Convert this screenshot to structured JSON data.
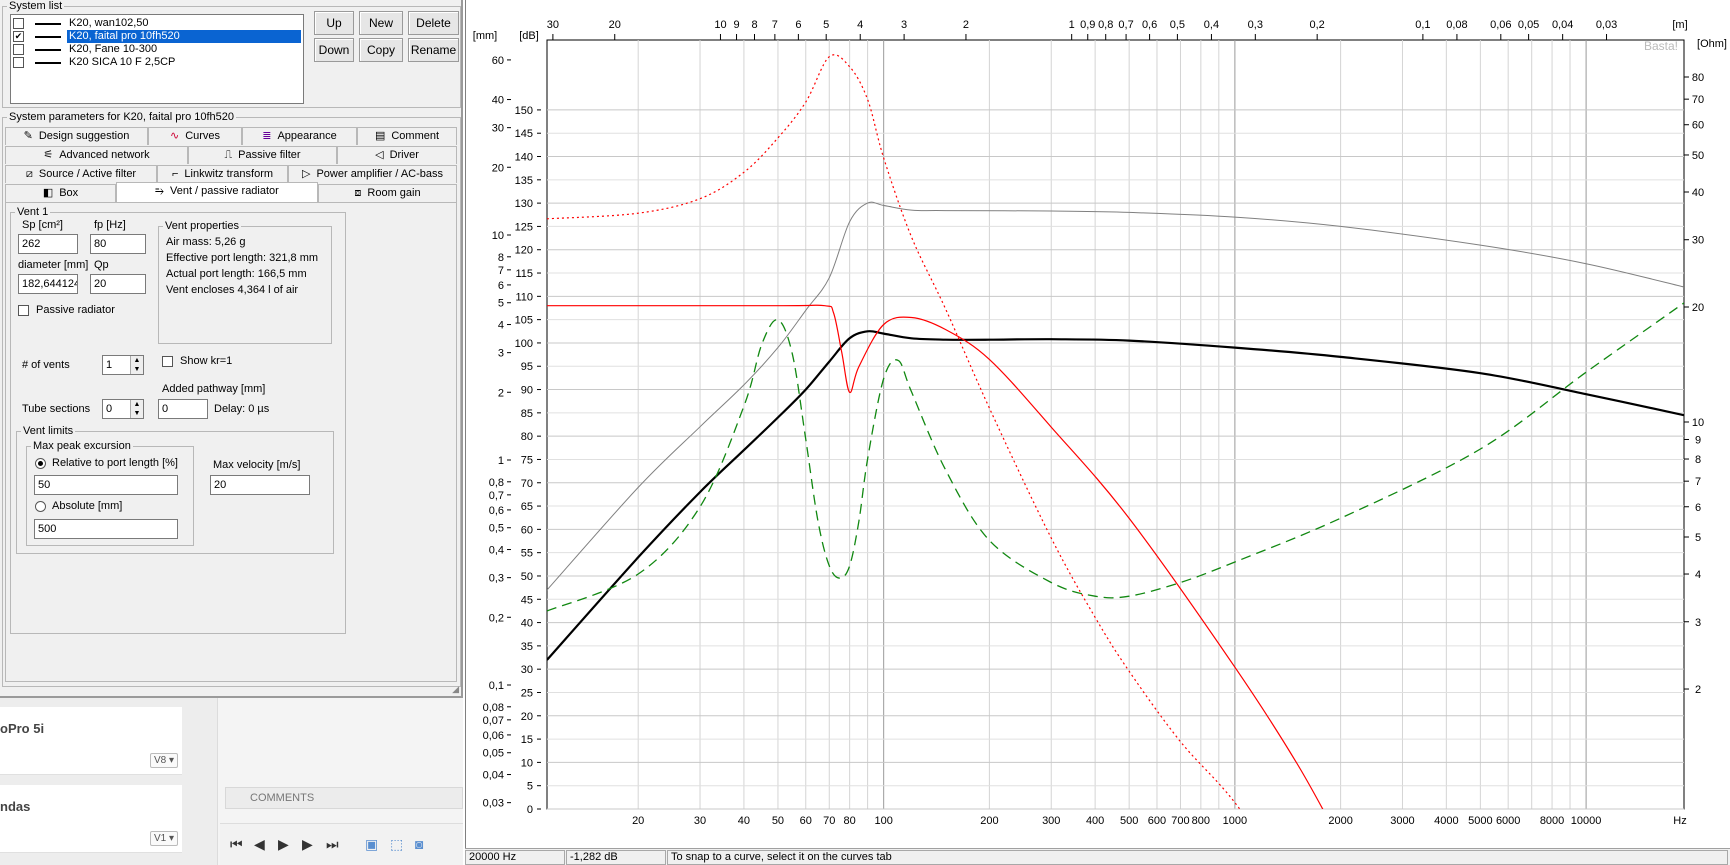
{
  "dialog": {
    "system_list_label": "System list",
    "systems": [
      {
        "name": "K20, wan102,50",
        "checked": false,
        "selected": false
      },
      {
        "name": "K20, faital pro 10fh520",
        "checked": true,
        "selected": true
      },
      {
        "name": "K20, Fane 10-300",
        "checked": false,
        "selected": false
      },
      {
        "name": "K20 SICA 10 F 2,5CP",
        "checked": false,
        "selected": false
      }
    ],
    "buttons": {
      "up": "Up",
      "new": "New",
      "delete": "Delete",
      "down": "Down",
      "copy": "Copy",
      "rename": "Rename"
    },
    "params_label": "System parameters for K20, faital pro 10fh520",
    "tabs": {
      "design_suggestion": "Design suggestion",
      "curves": "Curves",
      "appearance": "Appearance",
      "comment": "Comment",
      "advanced_network": "Advanced network",
      "passive_filter": "Passive filter",
      "driver": "Driver",
      "source_active_filter": "Source / Active filter",
      "linkwitz_transform": "Linkwitz transform",
      "power_amplifier": "Power amplifier / AC-bass",
      "box": "Box",
      "vent_passive_radiator": "Vent / passive radiator",
      "room_gain": "Room gain"
    },
    "vent": {
      "group_label": "Vent 1",
      "sp_label": "Sp [cm²]",
      "sp_value": "262",
      "fp_label": "fp [Hz]",
      "fp_value": "80",
      "diameter_label": "diameter [mm]",
      "diameter_value": "182,644124",
      "qp_label": "Qp",
      "qp_value": "20",
      "passive_radiator_label": "Passive radiator",
      "props_label": "Vent properties",
      "air_mass": "Air mass: 5,26 g",
      "effective_length": "Effective port length: 321,8 mm",
      "actual_length": "Actual port length: 166,5 mm",
      "encloses": "Vent encloses 4,364 l of air",
      "num_vents_label": "# of vents",
      "num_vents_value": "1",
      "show_kr_label": "Show kr=1",
      "added_pathway_label": "Added pathway [mm]",
      "tube_sections_label": "Tube sections",
      "tube_sections_value": "0",
      "added_pathway_value": "0",
      "delay": "Delay: 0 µs",
      "limits_label": "Vent limits",
      "max_peak_label": "Max peak excursion",
      "relative_label": "Relative to port length [%]",
      "relative_value": "50",
      "absolute_label": "Absolute [mm]",
      "absolute_value": "500",
      "max_velocity_label": "Max velocity [m/s]",
      "max_velocity_value": "20"
    }
  },
  "background_app": {
    "card1_title": "oPro 5i",
    "card1_version": "V8",
    "card2_title": "ndas",
    "card2_version": "V1",
    "comments": "COMMENTS"
  },
  "status": {
    "freq": "20000 Hz",
    "level": "-1,282 dB",
    "hint": "To snap to a curve, select it on the curves tab"
  },
  "chart_data": {
    "type": "line",
    "watermark": "Basta!",
    "x_scale": "log",
    "xlim": [
      11,
      19000
    ],
    "x_unit": "Hz",
    "x_ticks": [
      20,
      30,
      40,
      50,
      60,
      70,
      80,
      100,
      200,
      300,
      400,
      500,
      600,
      700,
      800,
      1000,
      2000,
      3000,
      4000,
      5000,
      6000,
      8000,
      10000
    ],
    "top_axis_unit": "[m]",
    "top_ticks": [
      "30",
      "20",
      "10",
      "9",
      "8",
      "7",
      "6",
      "5",
      "4",
      "3",
      "2",
      "1",
      "0,9",
      "0,8",
      "0,7",
      "0,6",
      "0,5",
      "0,4",
      "0,3",
      "0,2",
      "0,1",
      "0,08",
      "0,06",
      "0,05",
      "0,04",
      "0,03"
    ],
    "db_axis": {
      "unit": "[dB]",
      "ylim": [
        0,
        165
      ],
      "ticks": [
        0,
        5,
        10,
        15,
        20,
        25,
        30,
        35,
        40,
        45,
        50,
        55,
        60,
        65,
        70,
        75,
        80,
        85,
        90,
        95,
        100,
        105,
        110,
        115,
        120,
        125,
        130,
        135,
        140,
        145,
        150
      ]
    },
    "mm_axis": {
      "unit": "[mm]",
      "scale": "log",
      "ticks": [
        "60",
        "40",
        "30",
        "20",
        "10",
        "8",
        "7",
        "6",
        "5",
        "4",
        "3",
        "2",
        "1",
        "0,8",
        "0,7",
        "0,6",
        "0,5",
        "0,4",
        "0,3",
        "0,2",
        "0,1",
        "0,08",
        "0,07",
        "0,06",
        "0,05",
        "0,04",
        "0,03"
      ]
    },
    "ohm_axis": {
      "unit": "[Ohm]",
      "scale": "log",
      "ticks": [
        "80",
        "70",
        "60",
        "50",
        "40",
        "30",
        "20",
        "10",
        "9",
        "8",
        "7",
        "6",
        "5",
        "4",
        "3",
        "2"
      ]
    },
    "series": [
      {
        "color": "#000000",
        "style": "solid-thick",
        "axis": "dB",
        "x": [
          11,
          20,
          30,
          40,
          50,
          60,
          70,
          80,
          90,
          100,
          120,
          150,
          200,
          300,
          500,
          1000,
          2000,
          5000,
          10000,
          19000
        ],
        "y": [
          32,
          54,
          68,
          77,
          84,
          90,
          96,
          101,
          102.5,
          102,
          101,
          100.7,
          100.7,
          100.8,
          100.5,
          99,
          97,
          93.5,
          89,
          84.5
        ]
      },
      {
        "color": "#808080",
        "style": "solid-thin",
        "axis": "dB",
        "x": [
          11,
          20,
          30,
          40,
          50,
          60,
          70,
          80,
          90,
          100,
          120,
          150,
          300,
          500,
          1000,
          2000,
          5000,
          10000,
          19000
        ],
        "y": [
          47,
          69,
          82,
          91,
          99,
          107,
          114,
          126,
          130,
          129.5,
          128.5,
          128.4,
          128.3,
          128,
          127,
          125,
          121,
          117,
          112
        ]
      },
      {
        "color": "#ff0000",
        "style": "solid",
        "axis": "mm",
        "x": [
          11,
          50,
          68,
          72,
          76,
          80,
          85,
          100,
          120,
          150,
          200,
          300,
          500,
          1000,
          1500,
          2000
        ],
        "y": [
          4.85,
          4.85,
          4.85,
          4.5,
          3.0,
          2.0,
          2.6,
          4.0,
          4.3,
          3.8,
          2.8,
          1.4,
          0.55,
          0.12,
          0.045,
          0.02
        ]
      },
      {
        "color": "#ff0000",
        "style": "dotted",
        "axis": "mm",
        "x": [
          11,
          20,
          30,
          40,
          50,
          60,
          70,
          80,
          90,
          100,
          120,
          150,
          200,
          300,
          400,
          500,
          700,
          1000,
          1500
        ],
        "y": [
          11.8,
          12.5,
          14.5,
          19,
          27,
          39,
          62,
          56,
          40,
          22,
          9.8,
          4.7,
          1.7,
          0.45,
          0.2,
          0.115,
          0.056,
          0.03,
          0.012
        ]
      },
      {
        "color": "#118811",
        "style": "dashed",
        "axis": "Ohm",
        "x": [
          11,
          20,
          30,
          40,
          45,
          50,
          55,
          60,
          65,
          70,
          75,
          80,
          85,
          90,
          100,
          110,
          120,
          150,
          200,
          300,
          400,
          500,
          700,
          1000,
          2000,
          5000,
          10000,
          19000
        ],
        "y": [
          3.2,
          4.0,
          6.0,
          11,
          16,
          18.5,
          15,
          9,
          5.5,
          4.2,
          3.9,
          4.2,
          5.5,
          8,
          13,
          14.5,
          12,
          7.5,
          4.9,
          3.8,
          3.5,
          3.5,
          3.8,
          4.3,
          5.6,
          8.5,
          13.5,
          20.5
        ]
      }
    ]
  }
}
